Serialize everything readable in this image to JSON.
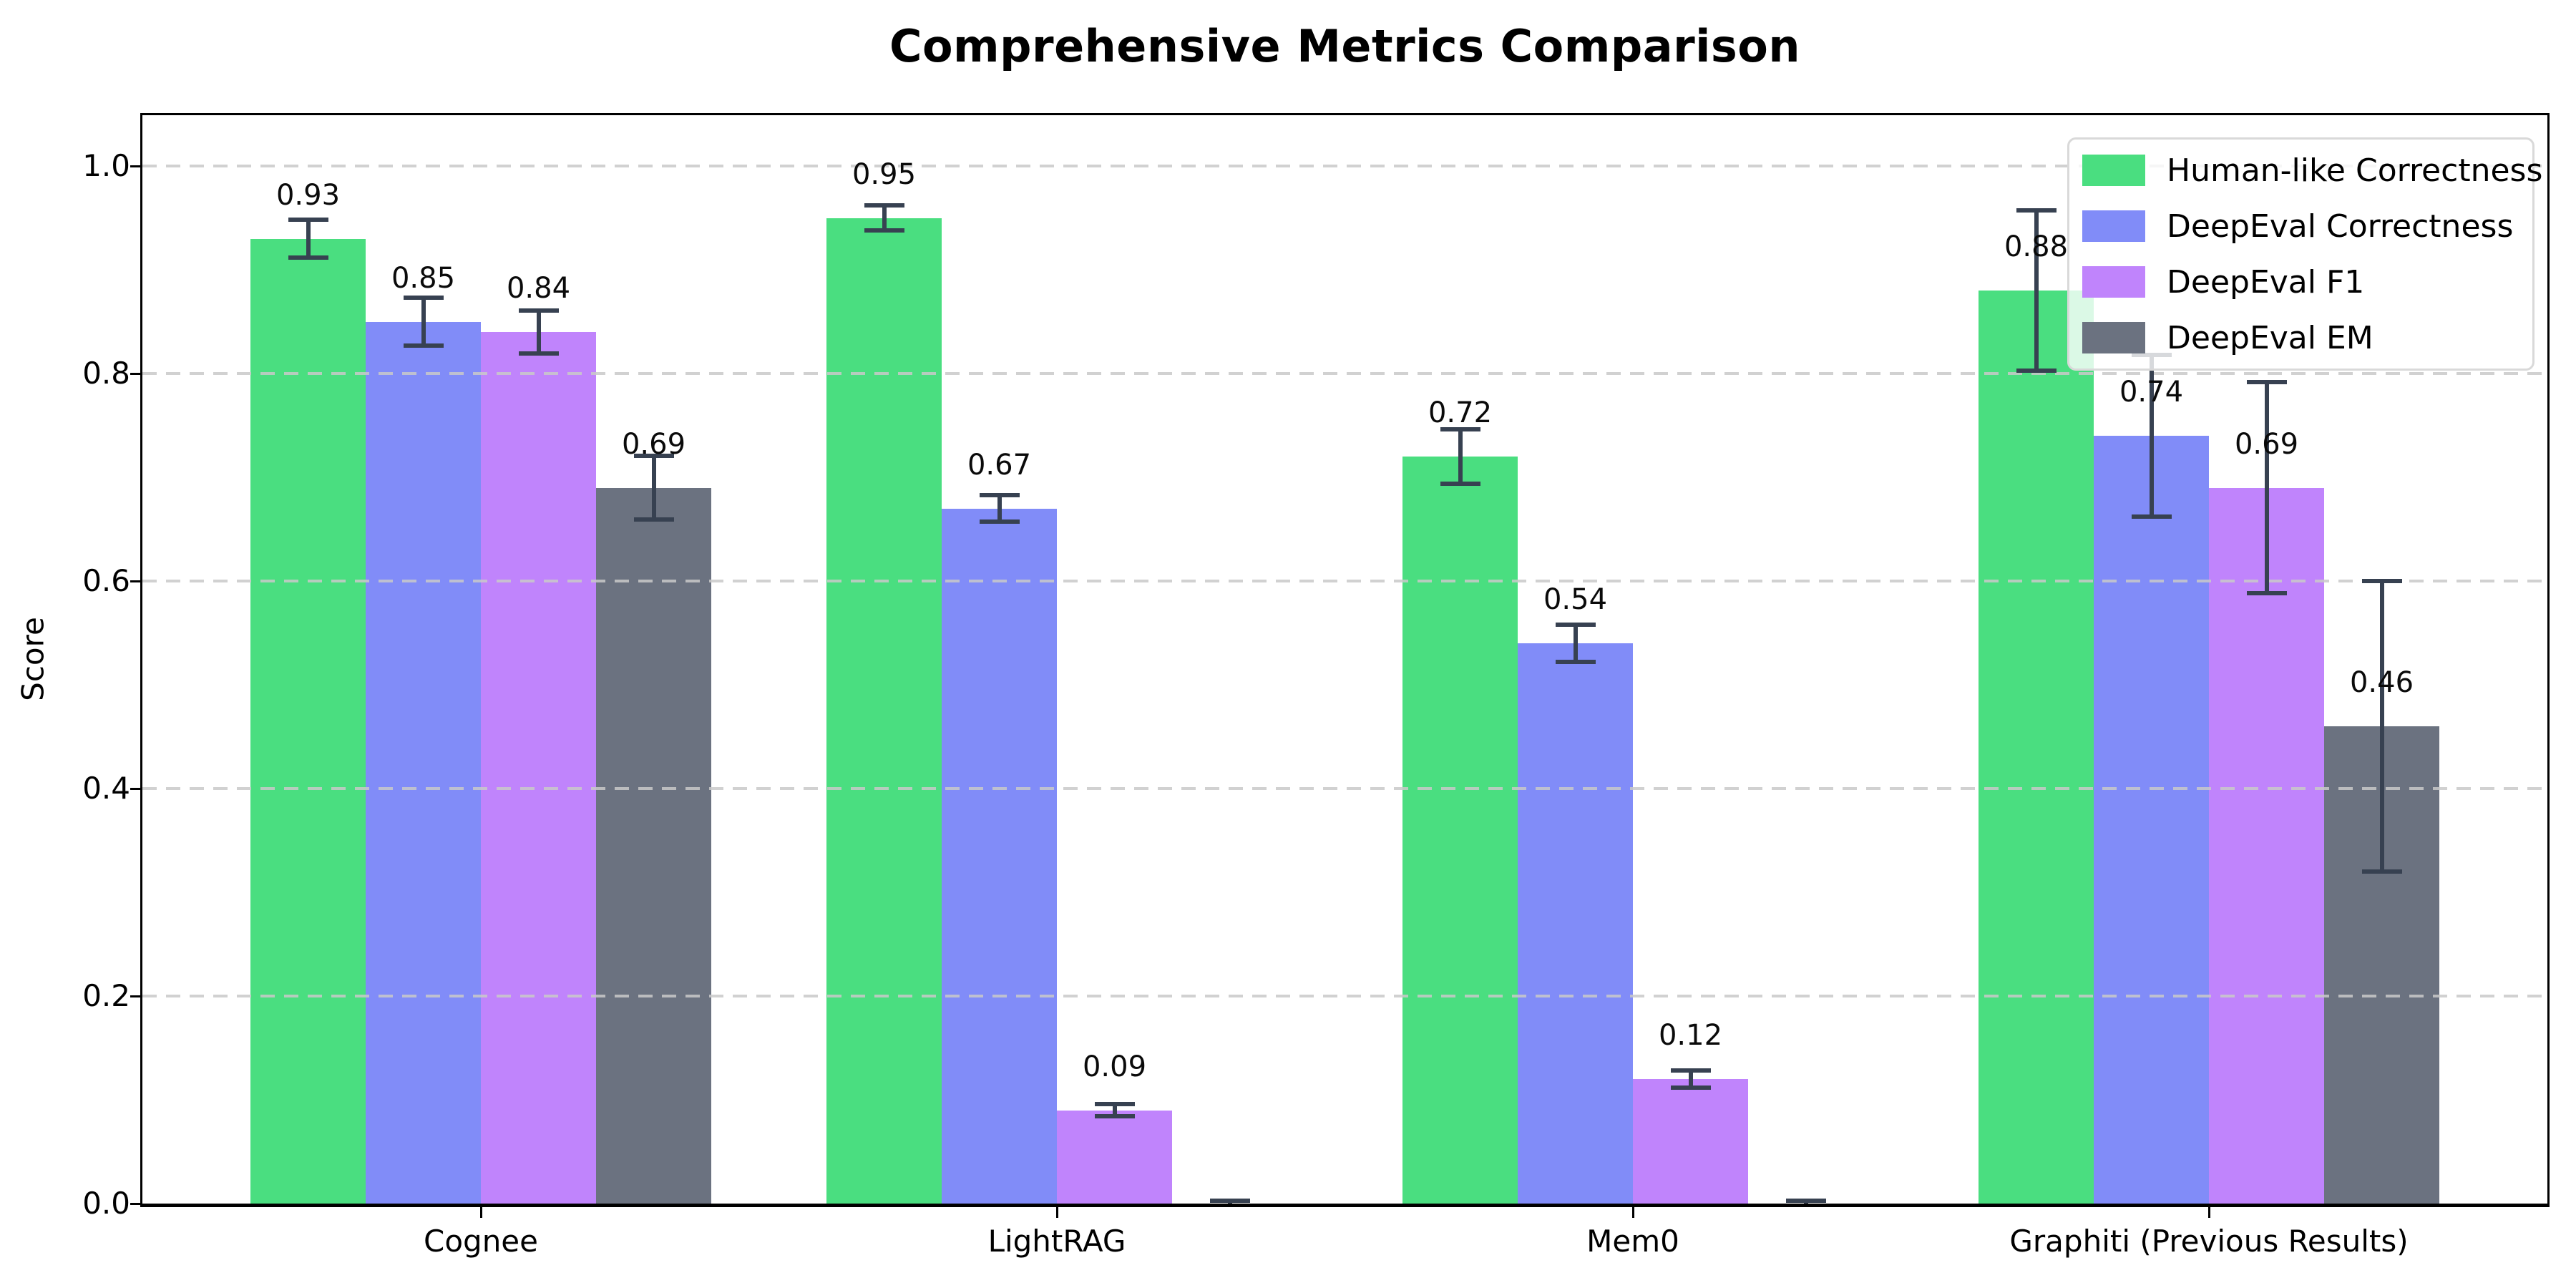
{
  "chart_data": {
    "type": "bar",
    "title": "Comprehensive Metrics Comparison",
    "xlabel": "",
    "ylabel": "Score",
    "categories": [
      "Cognee",
      "LightRAG",
      "Mem0",
      "Graphiti (Previous Results)"
    ],
    "series": [
      {
        "name": "Human-like Correctness",
        "color": "#4ade80",
        "values": [
          0.93,
          0.95,
          0.72,
          0.88
        ],
        "errors": [
          0.018,
          0.012,
          0.026,
          0.077
        ],
        "labels": [
          "0.93",
          "0.95",
          "0.72",
          "0.88"
        ]
      },
      {
        "name": "DeepEval Correctness",
        "color": "#818cf8",
        "values": [
          0.85,
          0.67,
          0.54,
          0.74
        ],
        "errors": [
          0.023,
          0.013,
          0.018,
          0.078
        ],
        "labels": [
          "0.85",
          "0.67",
          "0.54",
          "0.74"
        ]
      },
      {
        "name": "DeepEval F1",
        "color": "#c084fc",
        "values": [
          0.84,
          0.09,
          0.12,
          0.69
        ],
        "errors": [
          0.021,
          0.006,
          0.008,
          0.102
        ],
        "labels": [
          "0.84",
          "0.09",
          "0.12",
          "0.69"
        ]
      },
      {
        "name": "DeepEval EM",
        "color": "#6b7280",
        "values": [
          0.69,
          0.0,
          0.0,
          0.46
        ],
        "errors": [
          0.031,
          0.003,
          0.003,
          0.14
        ],
        "labels": [
          "0.69",
          null,
          null,
          "0.46"
        ]
      }
    ],
    "ylim": [
      0.0,
      1.05
    ],
    "yticks": [
      "0.0",
      "0.2",
      "0.4",
      "0.6",
      "0.8",
      "1.0"
    ],
    "grid": true,
    "grid_style": "dashed",
    "legend_position": "upper right",
    "error_bar_color": "#374151",
    "axis_color": "#000000",
    "background_color": "#ffffff"
  }
}
